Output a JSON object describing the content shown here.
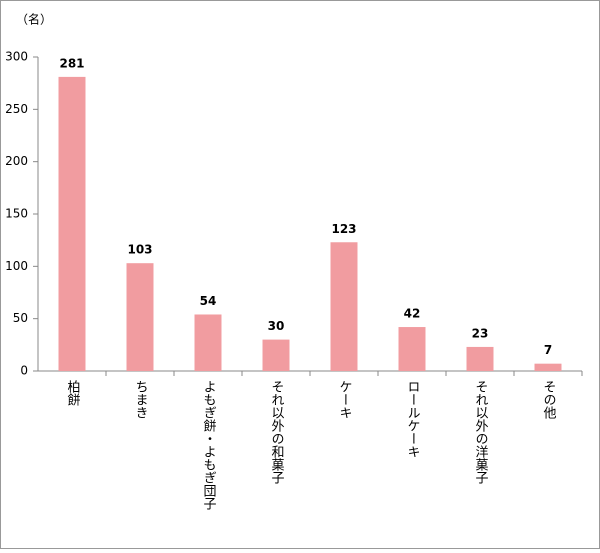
{
  "chart_data": {
    "type": "bar",
    "y_label": "（名）",
    "categories": [
      "柏餅",
      "ちまき",
      "よもぎ餅・よもぎ団子",
      "それ以外の和菓子",
      "ケーキ",
      "ロールケーキ",
      "それ以外の洋菓子",
      "その他"
    ],
    "values": [
      281,
      103,
      54,
      30,
      123,
      42,
      23,
      7
    ],
    "color": "#f19ca0",
    "ylim": [
      0,
      300
    ],
    "yticks": [
      0,
      50,
      100,
      150,
      200,
      250,
      300
    ],
    "grid": false
  }
}
